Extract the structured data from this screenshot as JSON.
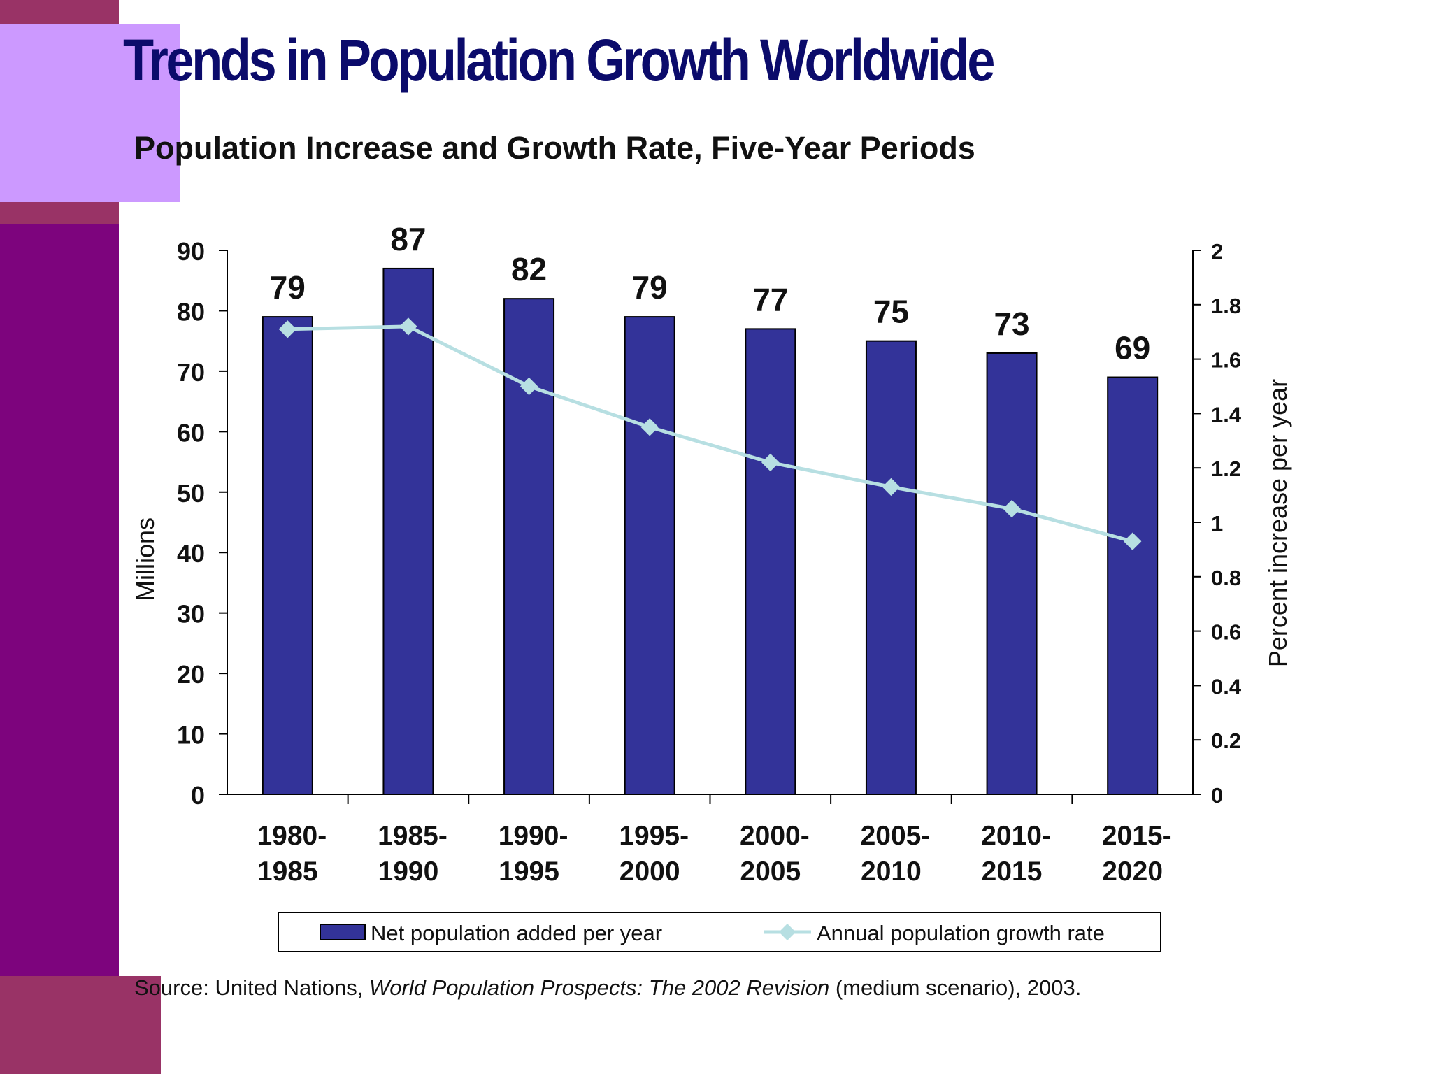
{
  "slide": {
    "title": "Trends in Population Growth Worldwide",
    "subtitle": "Population Increase and Growth Rate, Five-Year Periods",
    "source_prefix": "Source: United Nations, ",
    "source_title": "World Population Prospects: The 2002 Revision",
    "source_suffix": " (medium scenario), 2003."
  },
  "colors": {
    "bar": "#333399",
    "line": "#b7dfe2",
    "sidebar": "#7d047d",
    "accent_block": "#993366",
    "lavender": "#cc99ff",
    "title": "#0b0b6b"
  },
  "chart_data": {
    "type": "bar",
    "categories": [
      [
        "1980-",
        "1985"
      ],
      [
        "1985-",
        "1990"
      ],
      [
        "1990-",
        "1995"
      ],
      [
        "1995-",
        "2000"
      ],
      [
        "2000-",
        "2005"
      ],
      [
        "2005-",
        "2010"
      ],
      [
        "2010-",
        "2015"
      ],
      [
        "2015-",
        "2020"
      ]
    ],
    "series": [
      {
        "name": "Net population added per year",
        "type": "bar",
        "axis": "left",
        "values": [
          79,
          87,
          82,
          79,
          77,
          75,
          73,
          69
        ]
      },
      {
        "name": "Annual population growth rate",
        "type": "line",
        "axis": "right",
        "marker": "diamond",
        "values": [
          1.71,
          1.72,
          1.5,
          1.35,
          1.22,
          1.13,
          1.05,
          0.93
        ]
      }
    ],
    "data_labels": [
      "79",
      "87",
      "82",
      "79",
      "77",
      "75",
      "73",
      "69"
    ],
    "ylabel": "Millions",
    "ylabel_right": "Percent increase per year",
    "ylim": [
      0,
      90
    ],
    "ylim_right": [
      0,
      2
    ],
    "yticks": [
      "0",
      "10",
      "20",
      "30",
      "40",
      "50",
      "60",
      "70",
      "80",
      "90"
    ],
    "yticks_right": [
      "0",
      "0.2",
      "0.4",
      "0.6",
      "0.8",
      "1",
      "1.2",
      "1.4",
      "1.6",
      "1.8",
      "2"
    ],
    "grid": false,
    "legend": "bottom"
  }
}
